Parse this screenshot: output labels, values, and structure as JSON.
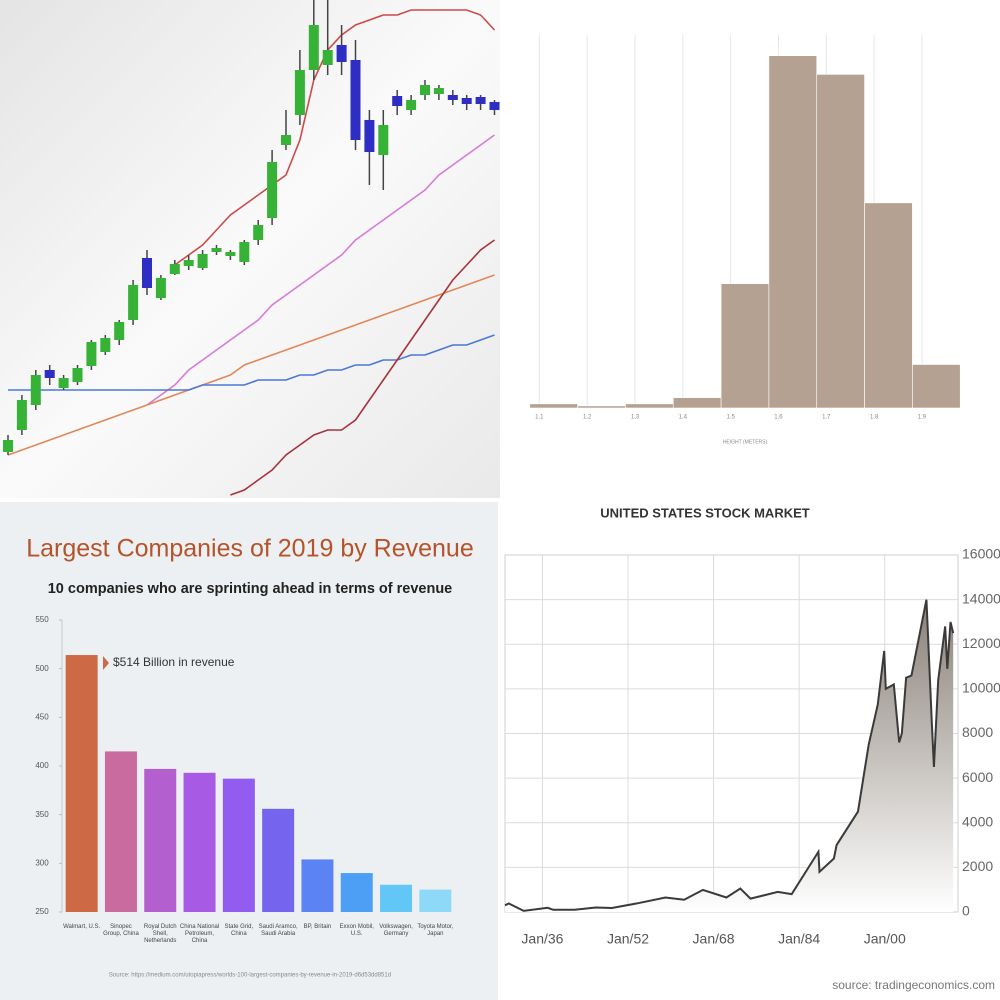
{
  "chart_data": [
    {
      "type": "candlestick",
      "categories": [
        null,
        null,
        null,
        null,
        null,
        null,
        null,
        null,
        null,
        null,
        null,
        null,
        null,
        null,
        null,
        null,
        null,
        null,
        null,
        null,
        null,
        null,
        null,
        null,
        null,
        null,
        null,
        null,
        null,
        null,
        null,
        null,
        null,
        null,
        null,
        null
      ],
      "open": [
        9.6,
        14,
        19,
        26,
        22.4,
        23.6,
        26.8,
        29.6,
        32,
        36,
        48.4,
        40.4,
        45.2,
        46.8,
        46.4,
        49.6,
        48.8,
        47.6,
        52,
        56.4,
        71,
        77,
        86,
        87,
        91,
        88,
        76,
        69,
        80.8,
        78,
        81,
        81.2,
        81,
        80.4,
        80.6,
        79.6
      ],
      "close": [
        12,
        20,
        25,
        24.4,
        24.4,
        26.4,
        31.6,
        32.4,
        35.6,
        43,
        42.4,
        44.4,
        47.2,
        48,
        49.2,
        50.4,
        49.6,
        51.6,
        55,
        67.6,
        73,
        86,
        95,
        90,
        87.6,
        72,
        69.6,
        75,
        78.8,
        80,
        83,
        82.4,
        80,
        79.2,
        79.2,
        78
      ],
      "high": [
        13,
        21,
        26,
        27,
        25,
        27,
        32,
        33,
        36,
        44,
        50,
        45,
        48,
        49,
        50,
        51,
        50,
        52,
        56,
        70,
        78,
        90,
        100,
        100,
        95,
        92,
        78,
        78,
        82,
        81,
        84,
        83,
        82,
        81,
        81,
        80
      ],
      "low": [
        9,
        13,
        18,
        23,
        22,
        23,
        26,
        29,
        31,
        35,
        41,
        40,
        45,
        46,
        46,
        49,
        48,
        47,
        51,
        55,
        70,
        75,
        84,
        85,
        85,
        70,
        63,
        62,
        77,
        77,
        80,
        80,
        79,
        78,
        78,
        77
      ],
      "up_color": "#36b236",
      "down_color": "#2e2ec4",
      "ylim": [
        0,
        100
      ],
      "series": [
        {
          "color": "#cc4a4a",
          "values": [
            null,
            null,
            null,
            null,
            null,
            null,
            null,
            null,
            null,
            null,
            null,
            null,
            47,
            49,
            51,
            54,
            57,
            59,
            61,
            63,
            65,
            72,
            84,
            90,
            93,
            95,
            96,
            97,
            97,
            98,
            98,
            98,
            98,
            98,
            97,
            94
          ]
        },
        {
          "color": "#d77ad9",
          "values": [
            null,
            null,
            null,
            null,
            null,
            null,
            null,
            null,
            null,
            null,
            19,
            21,
            23,
            26,
            28,
            30,
            32,
            34,
            36,
            39,
            41,
            43,
            45,
            47,
            49,
            52,
            54,
            56,
            58,
            60,
            62,
            65,
            67,
            69,
            71,
            73
          ]
        },
        {
          "color": "#e0885a",
          "values": [
            9,
            10,
            11,
            12,
            13,
            14,
            15,
            16,
            17,
            18,
            19,
            20,
            21,
            22,
            23,
            24,
            25,
            27,
            28,
            29,
            30,
            31,
            32,
            33,
            34,
            35,
            36,
            37,
            38,
            39,
            40,
            41,
            42,
            43,
            44,
            45
          ]
        },
        {
          "color": "#4a78d6",
          "values": [
            22,
            22,
            22,
            22,
            22,
            22,
            22,
            22,
            22,
            22,
            22,
            22,
            22,
            22,
            23,
            23,
            23,
            23,
            24,
            24,
            24,
            25,
            25,
            26,
            26,
            27,
            27,
            28,
            28,
            29,
            29,
            30,
            31,
            31,
            32,
            33
          ]
        },
        {
          "color": "#a8333a",
          "values": [
            null,
            null,
            null,
            null,
            null,
            null,
            null,
            null,
            null,
            null,
            null,
            null,
            null,
            null,
            null,
            null,
            1,
            2,
            4,
            6,
            9,
            11,
            13,
            14,
            14,
            16,
            20,
            24,
            28,
            32,
            36,
            40,
            44,
            47,
            50,
            52
          ]
        }
      ]
    },
    {
      "type": "histogram",
      "bins": [
        1.08,
        1.18,
        1.28,
        1.38,
        1.48,
        1.58,
        1.68,
        1.78,
        1.88,
        1.98
      ],
      "counts": [
        2,
        1,
        2,
        5,
        60,
        170,
        161,
        99,
        21
      ],
      "color": "#b5a192",
      "xlim": [
        1.07,
        1.99
      ],
      "ylim": [
        0,
        180
      ],
      "xticks": [
        1.1,
        1.2,
        1.3,
        1.4,
        1.5,
        1.6,
        1.7,
        1.8,
        1.9
      ],
      "xlabel": "HEIGHT (METERS)",
      "grid": true
    },
    {
      "type": "bar",
      "title": "Largest Companies of 2019 by Revenue",
      "subtitle": "10 companies who are sprinting ahead in terms of revenue",
      "categories": [
        "Walmart, U.S.",
        "Sinopec Group, China",
        "Royal Dutch Shell, Netherlands",
        "China National Petroleum, China",
        "State Grid, China",
        "Saudi Aramco, Saudi Arabia",
        "BP, Britain",
        "Exxon Mobil, U.S.",
        "Volkswagen, Germany",
        "Toyota Motor, Japan"
      ],
      "values": [
        514,
        415,
        397,
        393,
        387,
        356,
        304,
        290,
        278,
        273
      ],
      "colors": [
        "#cd6a45",
        "#c96b9e",
        "#b45fcf",
        "#a75be4",
        "#935cf0",
        "#7565ee",
        "#5b83f3",
        "#4d9ff5",
        "#62c6f6",
        "#8fd9f8"
      ],
      "ylim": [
        250,
        550
      ],
      "yticks": [
        250,
        300,
        350,
        400,
        450,
        500,
        550
      ],
      "annotation": "$514 Billion in revenue",
      "source": "Source: https://medium.com/utopiapress/worlds-100-largest-companies-by-revenue-in-2019-d6d53dd851d"
    },
    {
      "type": "area",
      "title": "UNITED STATES STOCK MARKET",
      "x": [
        1929,
        1929.7,
        1932.5,
        1937,
        1938,
        1942,
        1946,
        1949,
        1954,
        1959,
        1962.5,
        1966,
        1970.4,
        1973,
        1974.9,
        1980,
        1982.6,
        1987.6,
        1987.8,
        1990.5,
        1991,
        1995,
        1997,
        1998.7,
        1999.9,
        2000.2,
        2001.7,
        2002.7,
        2003.2,
        2004,
        2005,
        2007.8,
        2008.8,
        2009.2,
        2010,
        2011.3,
        2011.7,
        2012.3,
        2012.8
      ],
      "values": [
        300,
        380,
        50,
        190,
        100,
        100,
        200,
        180,
        400,
        650,
        550,
        990,
        650,
        1050,
        600,
        900,
        800,
        2700,
        1800,
        2400,
        3000,
        4500,
        7500,
        9300,
        11700,
        10000,
        10200,
        7600,
        8000,
        10500,
        10600,
        14000,
        8500,
        6500,
        10400,
        12800,
        10900,
        13000,
        12500
      ],
      "axis": "y2",
      "color": "#3a3a3a",
      "xlim": [
        1929,
        2013.7
      ],
      "xticks": [
        {
          "value": 1936,
          "label": "Jan/36"
        },
        {
          "value": 1952,
          "label": "Jan/52"
        },
        {
          "value": 1968,
          "label": "Jan/68"
        },
        {
          "value": 1984,
          "label": "Jan/84"
        },
        {
          "value": 2000,
          "label": "Jan/00"
        }
      ],
      "y2lim": [
        0,
        16000
      ],
      "y2ticks": [
        0,
        2000,
        4000,
        6000,
        8000,
        10000,
        12000,
        14000,
        16000
      ],
      "grid": true,
      "source": "source: tradingeconomics.com"
    }
  ]
}
